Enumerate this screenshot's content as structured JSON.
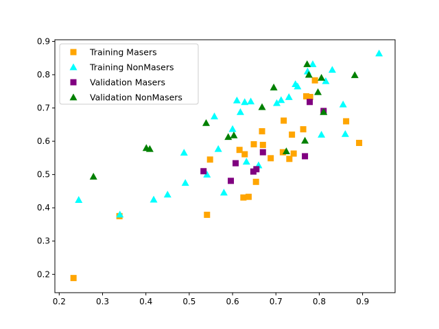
{
  "chart_data": {
    "type": "scatter",
    "title": "",
    "xlabel": "",
    "ylabel": "",
    "xlim": [
      0.19,
      0.975
    ],
    "ylim": [
      0.145,
      0.905
    ],
    "xticks": [
      0.2,
      0.3,
      0.4,
      0.5,
      0.6,
      0.7,
      0.8,
      0.9
    ],
    "yticks": [
      0.2,
      0.3,
      0.4,
      0.5,
      0.6,
      0.7,
      0.8,
      0.9
    ],
    "xtick_labels": [
      "0.2",
      "0.3",
      "0.4",
      "0.5",
      "0.6",
      "0.7",
      "0.8",
      "0.9"
    ],
    "ytick_labels": [
      "0.2",
      "0.3",
      "0.4",
      "0.5",
      "0.6",
      "0.7",
      "0.8",
      "0.9"
    ],
    "grid": false,
    "legend_position": "top-left",
    "series": [
      {
        "name": "Training Masers",
        "marker": "square",
        "color": "#ffa500",
        "points": [
          [
            0.233,
            0.189
          ],
          [
            0.339,
            0.375
          ],
          [
            0.541,
            0.379
          ],
          [
            0.548,
            0.545
          ],
          [
            0.616,
            0.574
          ],
          [
            0.625,
            0.431
          ],
          [
            0.628,
            0.561
          ],
          [
            0.637,
            0.433
          ],
          [
            0.649,
            0.591
          ],
          [
            0.654,
            0.478
          ],
          [
            0.668,
            0.63
          ],
          [
            0.67,
            0.589
          ],
          [
            0.688,
            0.549
          ],
          [
            0.716,
            0.567
          ],
          [
            0.718,
            0.662
          ],
          [
            0.731,
            0.547
          ],
          [
            0.737,
            0.62
          ],
          [
            0.741,
            0.563
          ],
          [
            0.763,
            0.636
          ],
          [
            0.77,
            0.735
          ],
          [
            0.779,
            0.733
          ],
          [
            0.79,
            0.783
          ],
          [
            0.862,
            0.66
          ],
          [
            0.892,
            0.595
          ]
        ]
      },
      {
        "name": "Training NonMasers",
        "marker": "triangle",
        "color": "#00ffff",
        "points": [
          [
            0.245,
            0.424
          ],
          [
            0.34,
            0.38
          ],
          [
            0.418,
            0.425
          ],
          [
            0.45,
            0.44
          ],
          [
            0.488,
            0.566
          ],
          [
            0.491,
            0.475
          ],
          [
            0.541,
            0.5
          ],
          [
            0.558,
            0.675
          ],
          [
            0.567,
            0.577
          ],
          [
            0.58,
            0.446
          ],
          [
            0.6,
            0.637
          ],
          [
            0.61,
            0.723
          ],
          [
            0.618,
            0.688
          ],
          [
            0.628,
            0.718
          ],
          [
            0.632,
            0.539
          ],
          [
            0.642,
            0.72
          ],
          [
            0.66,
            0.528
          ],
          [
            0.702,
            0.715
          ],
          [
            0.712,
            0.724
          ],
          [
            0.73,
            0.733
          ],
          [
            0.745,
            0.772
          ],
          [
            0.75,
            0.765
          ],
          [
            0.773,
            0.81
          ],
          [
            0.785,
            0.832
          ],
          [
            0.805,
            0.62
          ],
          [
            0.815,
            0.781
          ],
          [
            0.83,
            0.815
          ],
          [
            0.855,
            0.711
          ],
          [
            0.86,
            0.622
          ],
          [
            0.938,
            0.864
          ]
        ]
      },
      {
        "name": "Validation Masers",
        "marker": "square",
        "color": "#800080",
        "points": [
          [
            0.533,
            0.51
          ],
          [
            0.596,
            0.481
          ],
          [
            0.607,
            0.534
          ],
          [
            0.648,
            0.509
          ],
          [
            0.655,
            0.516
          ],
          [
            0.67,
            0.567
          ],
          [
            0.767,
            0.555
          ],
          [
            0.778,
            0.718
          ],
          [
            0.81,
            0.691
          ]
        ]
      },
      {
        "name": "Validation NonMasers",
        "marker": "triangle",
        "color": "#008000",
        "points": [
          [
            0.279,
            0.494
          ],
          [
            0.401,
            0.58
          ],
          [
            0.409,
            0.577
          ],
          [
            0.539,
            0.655
          ],
          [
            0.59,
            0.613
          ],
          [
            0.603,
            0.618
          ],
          [
            0.668,
            0.703
          ],
          [
            0.695,
            0.762
          ],
          [
            0.724,
            0.57
          ],
          [
            0.767,
            0.602
          ],
          [
            0.772,
            0.832
          ],
          [
            0.776,
            0.8
          ],
          [
            0.797,
            0.748
          ],
          [
            0.805,
            0.791
          ],
          [
            0.81,
            0.688
          ],
          [
            0.882,
            0.799
          ]
        ]
      }
    ]
  }
}
